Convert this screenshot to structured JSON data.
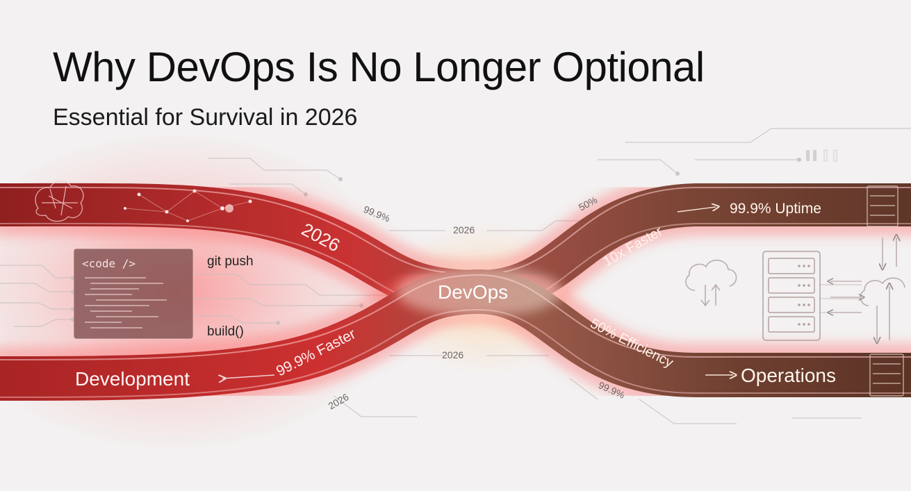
{
  "header": {
    "title": "Why DevOps Is No Longer Optional",
    "subtitle": "Essential for Survival in 2026"
  },
  "paths": {
    "development_label": "Development",
    "devops_label": "DevOps",
    "operations_label": "Operations",
    "upper_left_year": "2026",
    "lower_left_stat": "99.9% Faster",
    "upper_right_stat": "10x Faster",
    "uptime_stat": "99.9% Uptime",
    "efficiency_stat": "50% Efficiency"
  },
  "floating_labels": {
    "top_left_pct": "99.9%",
    "top_mid_year": "2026",
    "top_right_pct": "50%",
    "mid_year": "2026",
    "bottom_left_year": "2026",
    "bottom_right_pct": "99.9%"
  },
  "code_panel": {
    "tag": "<code />",
    "git_push": "git push",
    "build": "build()"
  },
  "colors": {
    "dev_red": "#c62a2a",
    "ops_brown": "#6b3a2a",
    "background": "#f3f1f1",
    "text": "#111111"
  },
  "icons": [
    "brain-icon",
    "server-rack-icon",
    "cloud-upload-download-icon",
    "cloud-sync-icon",
    "pause-icon"
  ]
}
